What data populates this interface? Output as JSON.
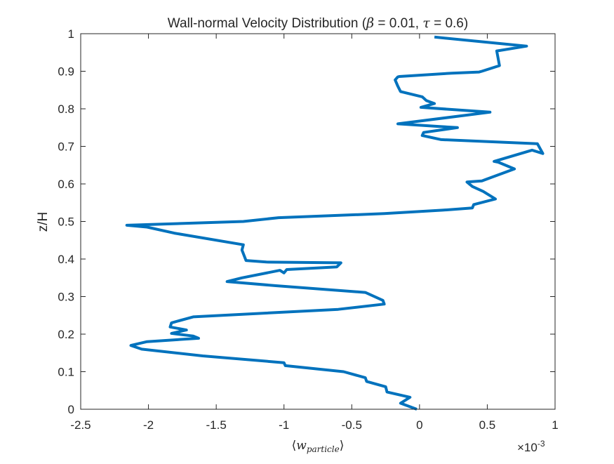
{
  "chart_data": {
    "type": "line",
    "title_prefix": "Wall-normal Velocity Distribution (",
    "title_beta_symbol": "β",
    "title_beta_value": " = 0.01, ",
    "title_tau_symbol": "τ",
    "title_tau_value": " = 0.6)",
    "xlabel_open": "⟨",
    "xlabel_var": "w",
    "xlabel_sub": "particle",
    "xlabel_close": "⟩",
    "ylabel": "z/H",
    "exponent_base": "×10",
    "exponent_power": "-3",
    "xlim": [
      -2.5,
      1
    ],
    "ylim": [
      0,
      1
    ],
    "xticks": [
      -2.5,
      -2,
      -1.5,
      -1,
      -0.5,
      0,
      0.5,
      1
    ],
    "xtick_labels": [
      "-2.5",
      "-2",
      "-1.5",
      "-1",
      "-0.5",
      "0",
      "0.5",
      "1"
    ],
    "yticks": [
      0,
      0.1,
      0.2,
      0.3,
      0.4,
      0.5,
      0.6,
      0.7,
      0.8,
      0.9,
      1
    ],
    "ytick_labels": [
      "0",
      "0.1",
      "0.2",
      "0.3",
      "0.4",
      "0.5",
      "0.6",
      "0.7",
      "0.8",
      "0.9",
      "1"
    ],
    "grid": false,
    "line_color": "#0072BD",
    "series": [
      {
        "x": [
          -2e-05,
          -0.00014,
          -7e-05,
          -0.00024,
          -0.00025,
          -0.00039,
          -0.0004,
          -0.00056,
          -0.00099,
          -0.001,
          -0.0016,
          -0.00205,
          -0.00213,
          -0.00201,
          -0.00163,
          -0.00167,
          -0.00183,
          -0.00172,
          -0.00184,
          -0.00183,
          -0.00167,
          -0.0006,
          -0.00026,
          -0.00027,
          -0.0004,
          -0.00106,
          -0.00142,
          -0.00131,
          -0.00103,
          -0.001,
          -0.00098,
          -0.00061,
          -0.00058,
          -0.00113,
          -0.00128,
          -0.00131,
          -0.0013,
          -0.00181,
          -0.00201,
          -0.00216,
          -0.0013,
          -0.00104,
          -0.00026,
          0.00017,
          0.00039,
          0.0004,
          0.00056,
          0.00047,
          0.00039,
          0.00035,
          0.00046,
          0.0007,
          0.00058,
          0.00055,
          0.00083,
          0.00091,
          0.00087,
          0.00016,
          2e-05,
          3e-05,
          0.00028,
          0.00014,
          -0.00016,
          0.00052,
          1e-05,
          0.00011,
          5e-05,
          2e-05,
          -0.00014,
          -0.00016,
          -0.00018,
          -0.00016,
          -0.00015,
          0.00024,
          0.00044,
          0.00046,
          0.00059,
          0.00057,
          0.00079,
          0.00011
        ],
        "y": [
          0.0,
          0.016,
          0.032,
          0.046,
          0.06,
          0.074,
          0.084,
          0.1,
          0.116,
          0.124,
          0.142,
          0.16,
          0.17,
          0.18,
          0.189,
          0.195,
          0.202,
          0.211,
          0.219,
          0.23,
          0.246,
          0.266,
          0.28,
          0.29,
          0.311,
          0.329,
          0.34,
          0.35,
          0.37,
          0.363,
          0.372,
          0.379,
          0.39,
          0.392,
          0.396,
          0.424,
          0.438,
          0.469,
          0.485,
          0.49,
          0.5,
          0.51,
          0.521,
          0.53,
          0.536,
          0.545,
          0.56,
          0.58,
          0.593,
          0.605,
          0.608,
          0.64,
          0.658,
          0.66,
          0.69,
          0.681,
          0.707,
          0.718,
          0.729,
          0.737,
          0.75,
          0.753,
          0.76,
          0.791,
          0.804,
          0.814,
          0.822,
          0.832,
          0.846,
          0.86,
          0.877,
          0.885,
          0.886,
          0.895,
          0.898,
          0.9,
          0.915,
          0.954,
          0.967,
          0.991
        ]
      }
    ]
  }
}
